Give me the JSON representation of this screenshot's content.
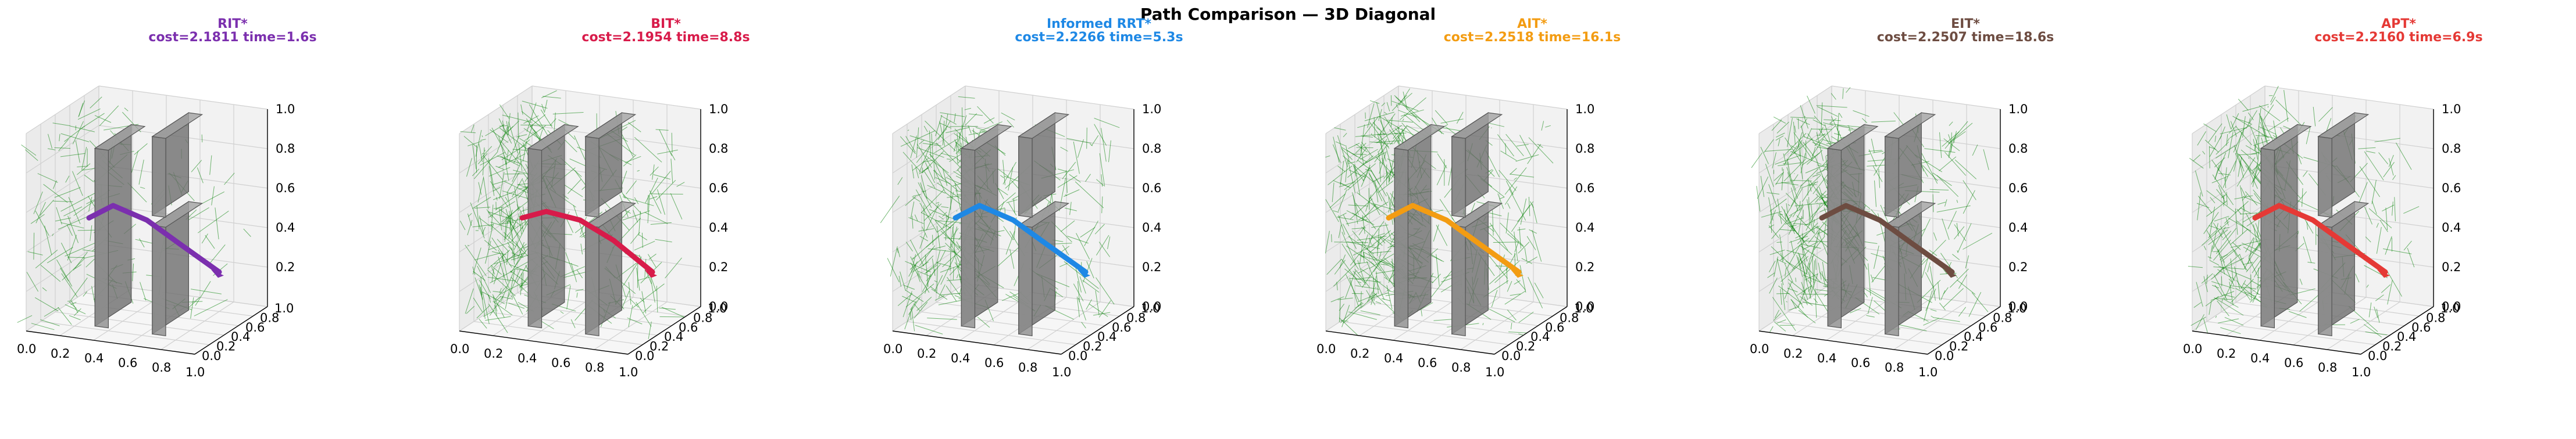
{
  "figure_title": "Path Comparison — 3D Diagonal",
  "chart_data": [
    {
      "type": "3d-path",
      "name": "RIT*",
      "subtitle": "cost=2.1811  time=1.6s",
      "cost": 2.1811,
      "time_s": 1.6,
      "color": "#7b2fae",
      "tree_density": 0.35,
      "path": [
        [
          0.2,
          0.4,
          0.5
        ],
        [
          0.3,
          0.5,
          0.55
        ],
        [
          0.5,
          0.5,
          0.5
        ],
        [
          0.7,
          0.5,
          0.4
        ],
        [
          0.8,
          0.8,
          0.2
        ]
      ],
      "x_ticks": [
        "0.0",
        "0.2",
        "0.4",
        "0.6",
        "0.8",
        "1.0"
      ],
      "y_ticks": [
        "0.0",
        "0.2",
        "0.4",
        "0.6",
        "0.8",
        "1.0"
      ],
      "z_ticks": [
        "0.2",
        "0.4",
        "0.6",
        "0.8",
        "1.0"
      ],
      "xlim": [
        0,
        1
      ],
      "ylim": [
        0,
        1
      ],
      "zlim": [
        0,
        1
      ]
    },
    {
      "type": "3d-path",
      "name": "BIT*",
      "subtitle": "cost=2.1954  time=8.8s",
      "cost": 2.1954,
      "time_s": 8.8,
      "color": "#d81b4a",
      "tree_density": 0.9,
      "path": [
        [
          0.2,
          0.4,
          0.5
        ],
        [
          0.3,
          0.5,
          0.52
        ],
        [
          0.5,
          0.5,
          0.5
        ],
        [
          0.7,
          0.5,
          0.42
        ],
        [
          0.8,
          0.8,
          0.2
        ]
      ],
      "x_ticks": [
        "0.0",
        "0.2",
        "0.4",
        "0.6",
        "0.8",
        "1.0"
      ],
      "y_ticks": [
        "0.0",
        "0.2",
        "0.4",
        "0.6",
        "0.8",
        "1.0"
      ],
      "z_ticks": [
        "0.0",
        "0.2",
        "0.4",
        "0.6",
        "0.8",
        "1.0"
      ],
      "xlim": [
        0,
        1
      ],
      "ylim": [
        0,
        1
      ],
      "zlim": [
        0,
        1
      ]
    },
    {
      "type": "3d-path",
      "name": "Informed RRT*",
      "subtitle": "cost=2.2266  time=5.3s",
      "cost": 2.2266,
      "time_s": 5.3,
      "color": "#1e88e5",
      "tree_density": 0.8,
      "path": [
        [
          0.2,
          0.4,
          0.5
        ],
        [
          0.3,
          0.5,
          0.55
        ],
        [
          0.5,
          0.5,
          0.5
        ],
        [
          0.7,
          0.5,
          0.4
        ],
        [
          0.8,
          0.8,
          0.2
        ]
      ],
      "x_ticks": [
        "0.0",
        "0.2",
        "0.4",
        "0.6",
        "0.8",
        "1.0"
      ],
      "y_ticks": [
        "0.0",
        "0.2",
        "0.4",
        "0.6",
        "0.8",
        "1.0"
      ],
      "z_ticks": [
        "0.0",
        "0.2",
        "0.4",
        "0.6",
        "0.8",
        "1.0"
      ],
      "xlim": [
        0,
        1
      ],
      "ylim": [
        0,
        1
      ],
      "zlim": [
        0,
        1
      ]
    },
    {
      "type": "3d-path",
      "name": "AIT*",
      "subtitle": "cost=2.2518  time=16.1s",
      "cost": 2.2518,
      "time_s": 16.1,
      "color": "#f39c12",
      "tree_density": 1.0,
      "path": [
        [
          0.2,
          0.4,
          0.5
        ],
        [
          0.3,
          0.5,
          0.55
        ],
        [
          0.5,
          0.5,
          0.5
        ],
        [
          0.7,
          0.5,
          0.4
        ],
        [
          0.8,
          0.8,
          0.2
        ]
      ],
      "x_ticks": [
        "0.0",
        "0.2",
        "0.4",
        "0.6",
        "0.8",
        "1.0"
      ],
      "y_ticks": [
        "0.0",
        "0.2",
        "0.4",
        "0.6",
        "0.8",
        "1.0"
      ],
      "z_ticks": [
        "0.0",
        "0.2",
        "0.4",
        "0.6",
        "0.8",
        "1.0"
      ],
      "xlim": [
        0,
        1
      ],
      "ylim": [
        0,
        1
      ],
      "zlim": [
        0,
        1
      ]
    },
    {
      "type": "3d-path",
      "name": "EIT*",
      "subtitle": "cost=2.2507  time=18.6s",
      "cost": 2.2507,
      "time_s": 18.6,
      "color": "#6d4c41",
      "tree_density": 1.0,
      "path": [
        [
          0.2,
          0.4,
          0.5
        ],
        [
          0.3,
          0.5,
          0.55
        ],
        [
          0.5,
          0.5,
          0.5
        ],
        [
          0.7,
          0.5,
          0.4
        ],
        [
          0.8,
          0.8,
          0.2
        ]
      ],
      "x_ticks": [
        "0.0",
        "0.2",
        "0.4",
        "0.6",
        "0.8",
        "1.0"
      ],
      "y_ticks": [
        "0.0",
        "0.2",
        "0.4",
        "0.6",
        "0.8",
        "1.0"
      ],
      "z_ticks": [
        "0.0",
        "0.2",
        "0.4",
        "0.6",
        "0.8",
        "1.0"
      ],
      "xlim": [
        0,
        1
      ],
      "ylim": [
        0,
        1
      ],
      "zlim": [
        0,
        1
      ]
    },
    {
      "type": "3d-path",
      "name": "APT*",
      "subtitle": "cost=2.2160  time=6.9s",
      "cost": 2.216,
      "time_s": 6.9,
      "color": "#e53935",
      "tree_density": 0.75,
      "path": [
        [
          0.2,
          0.4,
          0.5
        ],
        [
          0.3,
          0.5,
          0.55
        ],
        [
          0.5,
          0.5,
          0.5
        ],
        [
          0.7,
          0.5,
          0.4
        ],
        [
          0.8,
          0.8,
          0.2
        ]
      ],
      "x_ticks": [
        "0.0",
        "0.2",
        "0.4",
        "0.6",
        "0.8",
        "1.0"
      ],
      "y_ticks": [
        "0.0",
        "0.2",
        "0.4",
        "0.6",
        "0.8",
        "1.0"
      ],
      "z_ticks": [
        "0.0",
        "0.2",
        "0.4",
        "0.6",
        "0.8",
        "1.0"
      ],
      "xlim": [
        0,
        1
      ],
      "ylim": [
        0,
        1
      ],
      "zlim": [
        0,
        1
      ]
    }
  ],
  "colors": {
    "tree": "#008000",
    "obstacle": "#7a7a7a",
    "pane": "#f2f2f2",
    "grid": "#d0d0d0"
  }
}
